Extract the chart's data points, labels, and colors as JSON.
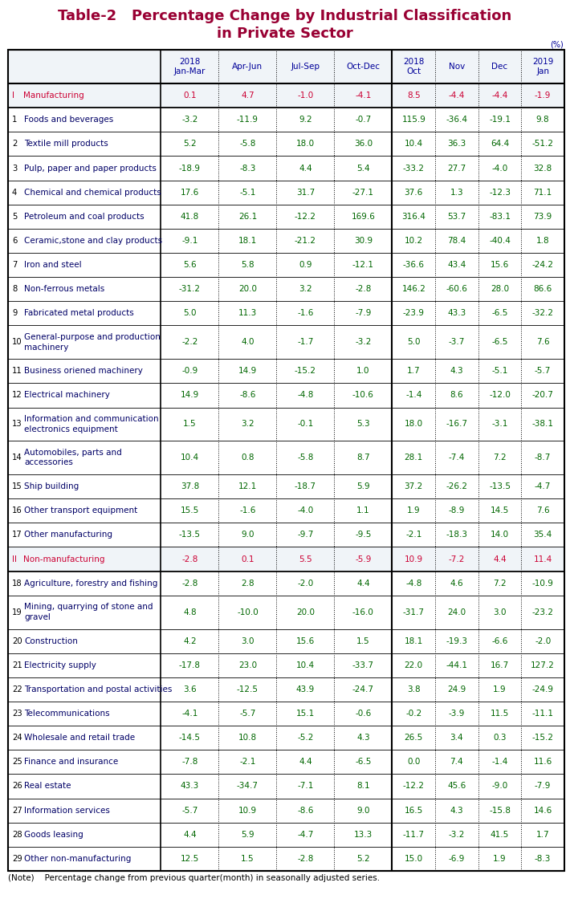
{
  "title_line1": "Table-2   Percentage Change by Industrial Classification",
  "title_line2": "in Private Sector",
  "title_color": "#990033",
  "unit_label": "(%)",
  "note": "(Note)    Percentage change from previous quarter(month) in seasonally adjusted series.",
  "rows": [
    {
      "label": "I",
      "label2": "Manufacturing",
      "is_header": true,
      "is_two_line": false,
      "values": [
        0.1,
        4.7,
        -1.0,
        -4.1,
        8.5,
        -4.4,
        -4.4,
        -1.9
      ]
    },
    {
      "label": "1",
      "label2": "Foods and beverages",
      "is_header": false,
      "is_two_line": false,
      "values": [
        -3.2,
        -11.9,
        9.2,
        -0.7,
        115.9,
        -36.4,
        -19.1,
        9.8
      ]
    },
    {
      "label": "2",
      "label2": "Textile mill products",
      "is_header": false,
      "is_two_line": false,
      "values": [
        5.2,
        -5.8,
        18.0,
        36.0,
        10.4,
        36.3,
        64.4,
        -51.2
      ]
    },
    {
      "label": "3",
      "label2": "Pulp, paper and paper products",
      "is_header": false,
      "is_two_line": false,
      "values": [
        -18.9,
        -8.3,
        4.4,
        5.4,
        -33.2,
        27.7,
        -4.0,
        32.8
      ]
    },
    {
      "label": "4",
      "label2": "Chemical and chemical products",
      "is_header": false,
      "is_two_line": false,
      "values": [
        17.6,
        -5.1,
        31.7,
        -27.1,
        37.6,
        1.3,
        -12.3,
        71.1
      ]
    },
    {
      "label": "5",
      "label2": "Petroleum and coal products",
      "is_header": false,
      "is_two_line": false,
      "values": [
        41.8,
        26.1,
        -12.2,
        169.6,
        316.4,
        53.7,
        -83.1,
        73.9
      ]
    },
    {
      "label": "6",
      "label2": "Ceramic,stone and clay products",
      "is_header": false,
      "is_two_line": false,
      "values": [
        -9.1,
        18.1,
        -21.2,
        30.9,
        10.2,
        78.4,
        -40.4,
        1.8
      ]
    },
    {
      "label": "7",
      "label2": "Iron and steel",
      "is_header": false,
      "is_two_line": false,
      "values": [
        5.6,
        5.8,
        0.9,
        -12.1,
        -36.6,
        43.4,
        15.6,
        -24.2
      ]
    },
    {
      "label": "8",
      "label2": "Non-ferrous metals",
      "is_header": false,
      "is_two_line": false,
      "values": [
        -31.2,
        20.0,
        3.2,
        -2.8,
        146.2,
        -60.6,
        28.0,
        86.6
      ]
    },
    {
      "label": "9",
      "label2": "Fabricated metal products",
      "is_header": false,
      "is_two_line": false,
      "values": [
        5.0,
        11.3,
        -1.6,
        -7.9,
        -23.9,
        43.3,
        -6.5,
        -32.2
      ]
    },
    {
      "label": "10",
      "label2": "General-purpose and production\nmachinery",
      "is_header": false,
      "is_two_line": true,
      "values": [
        -2.2,
        4.0,
        -1.7,
        -3.2,
        5.0,
        -3.7,
        -6.5,
        7.6
      ]
    },
    {
      "label": "11",
      "label2": "Business oriened machinery",
      "is_header": false,
      "is_two_line": false,
      "values": [
        -0.9,
        14.9,
        -15.2,
        1.0,
        1.7,
        4.3,
        -5.1,
        -5.7
      ]
    },
    {
      "label": "12",
      "label2": "Electrical machinery",
      "is_header": false,
      "is_two_line": false,
      "values": [
        14.9,
        -8.6,
        -4.8,
        -10.6,
        -1.4,
        8.6,
        -12.0,
        -20.7
      ]
    },
    {
      "label": "13",
      "label2": "Information and communication\nelectronics equipment",
      "is_header": false,
      "is_two_line": true,
      "values": [
        1.5,
        3.2,
        -0.1,
        5.3,
        18.0,
        -16.7,
        -3.1,
        -38.1
      ]
    },
    {
      "label": "14",
      "label2": "Automobiles, parts and\naccessories",
      "is_header": false,
      "is_two_line": true,
      "values": [
        10.4,
        0.8,
        -5.8,
        8.7,
        28.1,
        -7.4,
        7.2,
        -8.7
      ]
    },
    {
      "label": "15",
      "label2": "Ship building",
      "is_header": false,
      "is_two_line": false,
      "values": [
        37.8,
        12.1,
        -18.7,
        5.9,
        37.2,
        -26.2,
        -13.5,
        -4.7
      ]
    },
    {
      "label": "16",
      "label2": "Other transport equipment",
      "is_header": false,
      "is_two_line": false,
      "values": [
        15.5,
        -1.6,
        -4.0,
        1.1,
        1.9,
        -8.9,
        14.5,
        7.6
      ]
    },
    {
      "label": "17",
      "label2": "Other manufacturing",
      "is_header": false,
      "is_two_line": false,
      "values": [
        -13.5,
        9.0,
        -9.7,
        -9.5,
        -2.1,
        -18.3,
        14.0,
        35.4
      ]
    },
    {
      "label": "II",
      "label2": "Non-manufacturing",
      "is_header": true,
      "is_two_line": false,
      "values": [
        -2.8,
        0.1,
        5.5,
        -5.9,
        10.9,
        -7.2,
        4.4,
        11.4
      ]
    },
    {
      "label": "18",
      "label2": "Agriculture, forestry and fishing",
      "is_header": false,
      "is_two_line": false,
      "values": [
        -2.8,
        2.8,
        -2.0,
        4.4,
        -4.8,
        4.6,
        7.2,
        -10.9
      ]
    },
    {
      "label": "19",
      "label2": "Mining, quarrying of stone and\ngravel",
      "is_header": false,
      "is_two_line": true,
      "values": [
        4.8,
        -10.0,
        20.0,
        -16.0,
        -31.7,
        24.0,
        3.0,
        -23.2
      ]
    },
    {
      "label": "20",
      "label2": "Construction",
      "is_header": false,
      "is_two_line": false,
      "values": [
        4.2,
        3.0,
        15.6,
        1.5,
        18.1,
        -19.3,
        -6.6,
        -2.0
      ]
    },
    {
      "label": "21",
      "label2": "Electricity supply",
      "is_header": false,
      "is_two_line": false,
      "values": [
        -17.8,
        23.0,
        10.4,
        -33.7,
        22.0,
        -44.1,
        16.7,
        127.2
      ]
    },
    {
      "label": "22",
      "label2": "Transportation and postal activities",
      "is_header": false,
      "is_two_line": false,
      "values": [
        3.6,
        -12.5,
        43.9,
        -24.7,
        3.8,
        24.9,
        1.9,
        -24.9
      ]
    },
    {
      "label": "23",
      "label2": "Telecommunications",
      "is_header": false,
      "is_two_line": false,
      "values": [
        -4.1,
        -5.7,
        15.1,
        -0.6,
        -0.2,
        -3.9,
        11.5,
        -11.1
      ]
    },
    {
      "label": "24",
      "label2": "Wholesale and retail trade",
      "is_header": false,
      "is_two_line": false,
      "values": [
        -14.5,
        10.8,
        -5.2,
        4.3,
        26.5,
        3.4,
        0.3,
        -15.2
      ]
    },
    {
      "label": "25",
      "label2": "Finance and insurance",
      "is_header": false,
      "is_two_line": false,
      "values": [
        -7.8,
        -2.1,
        4.4,
        -6.5,
        0.0,
        7.4,
        -1.4,
        11.6
      ]
    },
    {
      "label": "26",
      "label2": "Real estate",
      "is_header": false,
      "is_two_line": false,
      "values": [
        43.3,
        -34.7,
        -7.1,
        8.1,
        -12.2,
        45.6,
        -9.0,
        -7.9
      ]
    },
    {
      "label": "27",
      "label2": "Information services",
      "is_header": false,
      "is_two_line": false,
      "values": [
        -5.7,
        10.9,
        -8.6,
        9.0,
        16.5,
        4.3,
        -15.8,
        14.6
      ]
    },
    {
      "label": "28",
      "label2": "Goods leasing",
      "is_header": false,
      "is_two_line": false,
      "values": [
        4.4,
        5.9,
        -4.7,
        13.3,
        -11.7,
        -3.2,
        41.5,
        1.7
      ]
    },
    {
      "label": "29",
      "label2": "Other non-manufacturing",
      "is_header": false,
      "is_two_line": false,
      "values": [
        12.5,
        1.5,
        -2.8,
        5.2,
        15.0,
        -6.9,
        1.9,
        -8.3
      ]
    }
  ],
  "col_headers": [
    "2018\nJan-Mar",
    "Apr-Jun",
    "Jul-Sep",
    "Oct-Dec",
    "2018\nOct",
    "Nov",
    "Dec",
    "2019\nJan"
  ],
  "header_val_color": "#cc0033",
  "data_val_color": "#006600",
  "label_num_color": "#000000",
  "label_text_color": "#000066",
  "header_label_color": "#cc0033",
  "border_color": "#000000",
  "col_header_color": "#000099",
  "bg_white": "#ffffff",
  "title_fontsize": 13.0,
  "data_fontsize": 7.5,
  "header_fontsize": 7.5
}
